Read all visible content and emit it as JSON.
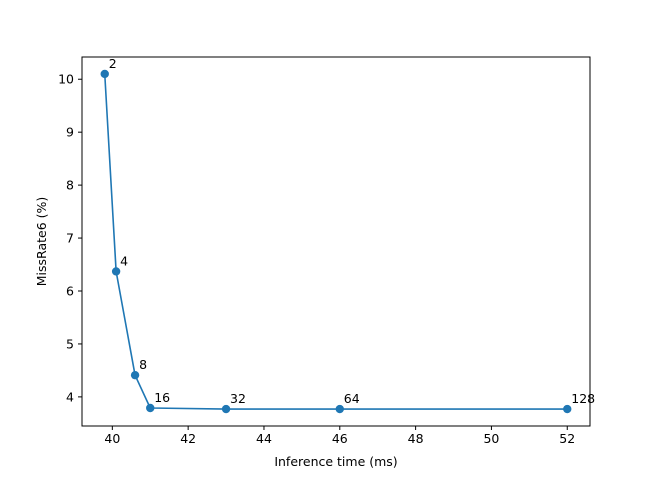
{
  "chart_data": {
    "type": "line",
    "title": "",
    "xlabel": "Inference time (ms)",
    "ylabel": "MissRate6 (%)",
    "xlim": [
      39.2,
      52.6
    ],
    "ylim": [
      3.45,
      10.42
    ],
    "xticks": [
      40,
      42,
      44,
      46,
      48,
      50,
      52
    ],
    "yticks": [
      4,
      5,
      6,
      7,
      8,
      9,
      10
    ],
    "grid": false,
    "series": [
      {
        "color": "#1f77b4",
        "marker": "circle",
        "points": [
          {
            "x": 39.8,
            "y": 10.1,
            "label": "2"
          },
          {
            "x": 40.1,
            "y": 6.37,
            "label": "4"
          },
          {
            "x": 40.6,
            "y": 4.41,
            "label": "8"
          },
          {
            "x": 41.0,
            "y": 3.79,
            "label": "16"
          },
          {
            "x": 43.0,
            "y": 3.77,
            "label": "32"
          },
          {
            "x": 46.0,
            "y": 3.77,
            "label": "64"
          },
          {
            "x": 52.0,
            "y": 3.77,
            "label": "128"
          }
        ]
      }
    ]
  }
}
